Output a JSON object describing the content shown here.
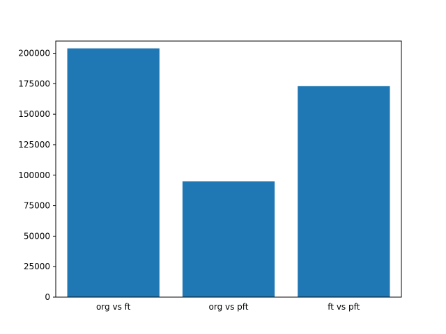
{
  "chart_data": {
    "type": "bar",
    "categories": [
      "org vs ft",
      "org vs pft",
      "ft vs pft"
    ],
    "values": [
      204000,
      95000,
      173000
    ],
    "title": "",
    "xlabel": "",
    "ylabel": "",
    "ylim": [
      0,
      210000
    ],
    "yticks": [
      0,
      25000,
      50000,
      75000,
      100000,
      125000,
      150000,
      175000,
      200000
    ],
    "bar_color": "#1f77b4",
    "axes_background": "#ffffff",
    "figure_background": "#ffffff",
    "spine_color": "#000000",
    "grid": false,
    "legend": "none"
  }
}
